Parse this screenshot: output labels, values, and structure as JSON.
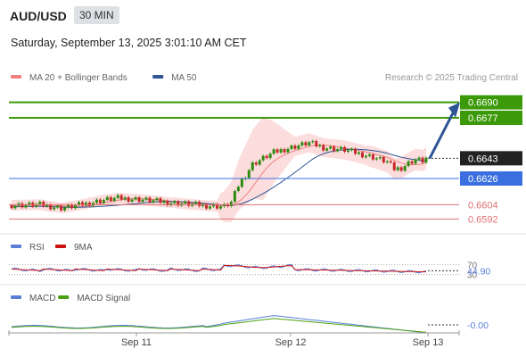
{
  "header": {
    "symbol": "AUD/USD",
    "timeframe": "30 MIN",
    "datetime": "Saturday, September 13, 2025 3:01:10 AM CET"
  },
  "legend_main": [
    {
      "label": "MA 20 + Bollinger Bands",
      "color": "#f08080"
    },
    {
      "label": "MA 50",
      "color": "#2f5597"
    }
  ],
  "copyright": "Research © 2025 Trading Central",
  "colors": {
    "resistance": "#3c9a0a",
    "current": "#222222",
    "pivot": "#3b6fe0",
    "support": "#e07070",
    "bull": "#2e8b10",
    "bear": "#c62828",
    "arrow": "#2f5597",
    "band_fill": "#fbd5d5",
    "ma20": "#f08080",
    "ma50": "#2f5597",
    "rsi": "#5b7fd9",
    "rsi_ma": "#cc1111",
    "macd": "#5b7fd9",
    "macd_signal": "#4aa010"
  },
  "chart_data": [
    {
      "type": "candlestick",
      "name": "price",
      "ylim": [
        0.6581,
        0.6701
      ],
      "x_tick_labels": [
        "Sep 11",
        "Sep 12",
        "Sep 13"
      ],
      "levels": [
        {
          "label": "0.6690",
          "value": 0.669,
          "kind": "resistance",
          "box": true
        },
        {
          "label": "0.6677",
          "value": 0.6677,
          "kind": "resistance",
          "box": true
        },
        {
          "label": "0.6643",
          "value": 0.6643,
          "kind": "current",
          "box": true
        },
        {
          "label": "0.6626",
          "value": 0.6626,
          "kind": "pivot",
          "box": true
        },
        {
          "label": "0.6604",
          "value": 0.6604,
          "kind": "support",
          "box": false
        },
        {
          "label": "0.6592",
          "value": 0.6592,
          "kind": "support",
          "box": false
        }
      ],
      "arrow": {
        "from": 0.6643,
        "to": 0.669
      }
    },
    {
      "type": "line",
      "name": "rsi",
      "legend": [
        {
          "label": "RSI",
          "color": "#5b7fd9"
        },
        {
          "label": "9MA",
          "color": "#cc1111"
        }
      ],
      "levels": [
        70,
        30
      ],
      "level_labels": [
        "70",
        "30"
      ],
      "current_label": "44.90",
      "current_value": 44.9
    },
    {
      "type": "line",
      "name": "macd",
      "legend": [
        {
          "label": "MACD",
          "color": "#5b7fd9"
        },
        {
          "label": "MACD Signal",
          "color": "#4aa010"
        }
      ],
      "current_label": "-0.00",
      "current_value": 0.0
    }
  ]
}
